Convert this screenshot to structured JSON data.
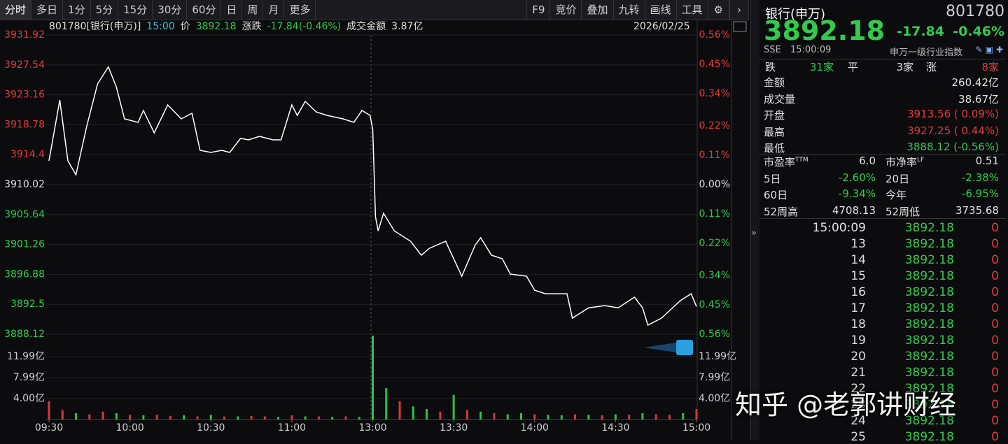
{
  "toolbar": {
    "tabs": [
      "分时",
      "多日",
      "1分",
      "5分",
      "15分",
      "30分",
      "60分",
      "日",
      "周",
      "月",
      "更多"
    ],
    "tools": [
      "F9",
      "竞价",
      "叠加",
      "九转",
      "画线",
      "工具"
    ]
  },
  "info_bar": {
    "code_name": "801780[银行(申万)]",
    "time": "15:00",
    "price_label": "价",
    "price": "3892.18",
    "change_label": "涨跌",
    "change": "-17.84(-0.46%)",
    "amount_label": "成交金额",
    "amount": "3.87亿",
    "date": "2026/02/25"
  },
  "chart_data": [
    {
      "type": "line",
      "color": "#ffffff",
      "grid": true,
      "x": [
        0,
        4,
        7,
        10,
        14,
        18,
        22,
        25,
        28,
        33,
        35,
        39,
        44,
        49,
        53,
        56,
        60,
        64,
        67,
        71,
        74,
        78,
        83,
        86,
        90,
        92,
        95,
        99,
        103,
        109,
        113,
        116,
        119,
        120,
        121,
        122,
        124,
        128,
        134,
        138,
        141,
        147,
        153,
        158,
        160,
        164,
        168,
        171,
        177,
        180,
        184,
        188,
        192,
        194,
        200,
        206,
        211,
        217,
        220,
        222,
        227,
        234,
        238,
        240
      ],
      "values": [
        3913.5,
        3922.4,
        3913.5,
        3911.45,
        3918.61,
        3924.76,
        3927.25,
        3924.24,
        3919.64,
        3919.13,
        3920.87,
        3917.59,
        3921.69,
        3919.64,
        3920.46,
        3915.03,
        3914.73,
        3915.03,
        3914.73,
        3916.77,
        3916.57,
        3917.08,
        3916.57,
        3916.57,
        3921.69,
        3920.15,
        3922.2,
        3920.66,
        3920.15,
        3919.64,
        3919.13,
        3920.87,
        3920.15,
        3918.1,
        3905.31,
        3903.26,
        3905.82,
        3903.26,
        3901.73,
        3899.68,
        3900.7,
        3901.73,
        3896.61,
        3901.21,
        3902.24,
        3899.68,
        3899.17,
        3896.92,
        3896.61,
        3894.56,
        3894.05,
        3894.05,
        3894.05,
        3890.47,
        3891.99,
        3892.31,
        3891.99,
        3893.54,
        3891.99,
        3889.44,
        3890.47,
        3893.03,
        3894.05,
        3892.18
      ],
      "xlim": [
        0,
        240
      ],
      "xticks": [
        {
          "value": 0,
          "label": "09:30"
        },
        {
          "value": 30,
          "label": "10:00"
        },
        {
          "value": 60,
          "label": "10:30"
        },
        {
          "value": 90,
          "label": "11:00"
        },
        {
          "value": 120,
          "label": "13:00"
        },
        {
          "value": 150,
          "label": "13:30"
        },
        {
          "value": 180,
          "label": "14:00"
        },
        {
          "value": 210,
          "label": "14:30"
        },
        {
          "value": 240,
          "label": "15:00"
        }
      ],
      "ylim": [
        3888.12,
        3931.92
      ],
      "yticks": [
        3931.92,
        3927.54,
        3923.16,
        3918.78,
        3914.4,
        3910.02,
        3905.64,
        3901.26,
        3896.88,
        3892.5,
        3888.12
      ],
      "y2lim": [
        -0.56,
        0.56
      ],
      "y2ticks": [
        {
          "value": 0.56,
          "label": "0.56%"
        },
        {
          "value": 0.45,
          "label": "0.45%"
        },
        {
          "value": 0.34,
          "label": "0.34%"
        },
        {
          "value": 0.22,
          "label": "0.22%"
        },
        {
          "value": 0.11,
          "label": "0.11%"
        },
        {
          "value": 0,
          "label": "0.00%"
        },
        {
          "value": -0.11,
          "label": "0.11%"
        },
        {
          "value": -0.22,
          "label": "0.22%"
        },
        {
          "value": -0.34,
          "label": "0.34%"
        },
        {
          "value": -0.45,
          "label": "0.45%"
        },
        {
          "value": -0.56,
          "label": "0.56%"
        }
      ]
    },
    {
      "type": "bar",
      "x": [
        0,
        5,
        10,
        15,
        20,
        25,
        30,
        35,
        40,
        45,
        50,
        55,
        60,
        65,
        70,
        75,
        80,
        85,
        90,
        95,
        100,
        105,
        110,
        115,
        120,
        125,
        130,
        135,
        140,
        145,
        150,
        155,
        160,
        165,
        170,
        175,
        180,
        185,
        190,
        195,
        200,
        205,
        210,
        215,
        220,
        225,
        230,
        235,
        240
      ],
      "values": [
        3.5,
        1.8,
        1.2,
        1.0,
        1.5,
        1.2,
        0.9,
        0.8,
        0.9,
        0.7,
        0.8,
        0.6,
        0.9,
        0.6,
        0.6,
        0.7,
        0.6,
        0.5,
        0.8,
        0.6,
        0.6,
        0.5,
        0.6,
        0.5,
        16.0,
        6.0,
        3.5,
        2.5,
        2.0,
        1.5,
        4.7,
        1.8,
        1.5,
        1.2,
        1.0,
        1.2,
        1.0,
        0.9,
        0.8,
        1.0,
        0.9,
        0.8,
        1.0,
        0.9,
        1.2,
        1.0,
        0.9,
        1.2,
        2.0
      ],
      "colors": [
        "#d23a3a",
        "#d23a3a",
        "#2fc24a",
        "#d23a3a",
        "#d23a3a",
        "#2fc24a",
        "#d23a3a",
        "#2fc24a",
        "#d23a3a",
        "#d23a3a",
        "#2fc24a",
        "#d23a3a",
        "#2fc24a",
        "#d23a3a",
        "#2fc24a",
        "#d23a3a",
        "#d23a3a",
        "#2fc24a",
        "#d23a3a",
        "#2fc24a",
        "#d23a3a",
        "#2fc24a",
        "#d23a3a",
        "#2fc24a",
        "#2fc24a",
        "#2fc24a",
        "#d23a3a",
        "#2fc24a",
        "#2fc24a",
        "#d23a3a",
        "#2fc24a",
        "#d23a3a",
        "#2fc24a",
        "#d23a3a",
        "#2fc24a",
        "#2fc24a",
        "#d23a3a",
        "#2fc24a",
        "#2fc24a",
        "#d23a3a",
        "#2fc24a",
        "#d23a3a",
        "#2fc24a",
        "#d23a3a",
        "#2fc24a",
        "#d23a3a",
        "#d23a3a",
        "#2fc24a",
        "#d23a3a"
      ],
      "ylim": [
        0,
        16
      ],
      "yticks": [
        {
          "value": 11.99,
          "label": "11.99亿"
        },
        {
          "value": 7.99,
          "label": "7.99亿"
        },
        {
          "value": 4.0,
          "label": "4.00亿"
        }
      ]
    }
  ],
  "quote": {
    "name": "银行(申万)",
    "code": "801780",
    "price": "3892.18",
    "change": "-17.84",
    "change_pct": "-0.46%",
    "exchange": "SSE",
    "time": "15:00:09",
    "index_type": "申万一级行业指数"
  },
  "breadth": {
    "down_label": "跌",
    "down": "31家",
    "flat_label": "平",
    "flat": "3家",
    "up_label": "涨",
    "up": "8家"
  },
  "stats": [
    {
      "label": "金额",
      "value": "260.42亿",
      "tone": "neutral"
    },
    {
      "label": "成交量",
      "value": "38.67亿",
      "tone": "neutral"
    },
    {
      "label": "开盘",
      "value": "3913.56 ( 0.09%)",
      "tone": "up"
    },
    {
      "label": "最高",
      "value": "3927.25 ( 0.44%)",
      "tone": "up"
    },
    {
      "label": "最低",
      "value": "3888.12 (-0.56%)",
      "tone": "down"
    }
  ],
  "valuation": [
    [
      {
        "label": "市盈率",
        "sup": "TTM",
        "value": "6.0",
        "tone": "neutral"
      },
      {
        "label": "市净率",
        "sup": "LF",
        "value": "0.51",
        "tone": "neutral"
      }
    ],
    [
      {
        "label": "5日",
        "value": "-2.60%",
        "tone": "down"
      },
      {
        "label": "20日",
        "value": "-2.38%",
        "tone": "down"
      }
    ],
    [
      {
        "label": "60日",
        "value": "-9.34%",
        "tone": "down"
      },
      {
        "label": "今年",
        "value": "-6.95%",
        "tone": "down"
      }
    ],
    [
      {
        "label": "52周高",
        "value": "4708.13",
        "tone": "neutral"
      },
      {
        "label": "52周低",
        "value": "3735.68",
        "tone": "neutral"
      }
    ]
  ],
  "ticks": [
    [
      "15:00:09",
      "3892.18",
      "0"
    ],
    [
      "13",
      "3892.18",
      "0"
    ],
    [
      "14",
      "3892.18",
      "0"
    ],
    [
      "15",
      "3892.18",
      "0"
    ],
    [
      "16",
      "3892.18",
      "0"
    ],
    [
      "17",
      "3892.18",
      "0"
    ],
    [
      "18",
      "3892.18",
      "0"
    ],
    [
      "19",
      "3892.18",
      "0"
    ],
    [
      "20",
      "3892.18",
      "0"
    ],
    [
      "21",
      "3892.18",
      "0"
    ],
    [
      "22",
      "3892.18",
      "0"
    ],
    [
      "23",
      "3892.18",
      "0"
    ],
    [
      "24",
      "3892.18",
      "0"
    ],
    [
      "25",
      "3892.18",
      "0"
    ]
  ],
  "watermark": "知乎 @老郭讲财经"
}
